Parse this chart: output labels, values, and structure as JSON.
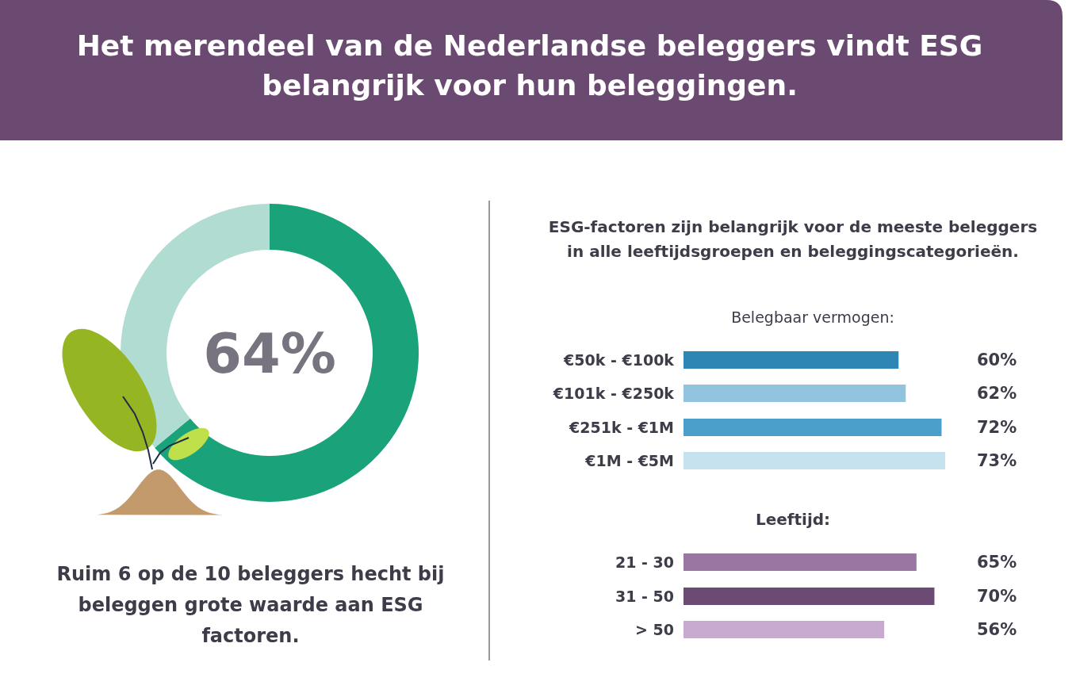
{
  "chart_data": [
    {
      "type": "donut",
      "title": "Het merendeel van de Nederlandse beleggers vindt ESG belangrijk voor hun beleggingen.",
      "categories": [
        null,
        null
      ],
      "values": [
        64,
        36
      ],
      "colors": [
        "#1aa37a",
        "#b0dcd1"
      ],
      "value_labels": [
        "64%",
        null
      ],
      "annotations": [
        "Ruim 6 op de 10 beleggers hecht bij beleggen grote waarde aan ESG factoren."
      ]
    },
    {
      "type": "bar",
      "orientation": "horizontal",
      "title": "ESG-factoren zijn belangrijk voor de meeste beleggers in alle leeftijdsgroepen en beleggingscategorieën.",
      "subtitle": "Belegbaar vermogen:",
      "categories": [
        "€50k - €100k",
        "€101k - €250k",
        "€251k - €1M",
        "€1M - €5M"
      ],
      "values": [
        60,
        62,
        72,
        73
      ],
      "colors": [
        "#2e86b4",
        "#93c4df",
        "#4a9fcb",
        "#c7e2ef"
      ],
      "value_labels": [
        "60%",
        "62%",
        "72%",
        "73%"
      ]
    },
    {
      "type": "bar",
      "orientation": "horizontal",
      "title": "Leeftijd:",
      "categories": [
        "21 - 30",
        "31 - 50",
        "> 50"
      ],
      "values": [
        65,
        70,
        56
      ],
      "colors": [
        "#9a76a2",
        "#6b4a73",
        "#c7aacd"
      ],
      "value_labels": [
        "65%",
        "70%",
        "56%"
      ]
    }
  ]
}
